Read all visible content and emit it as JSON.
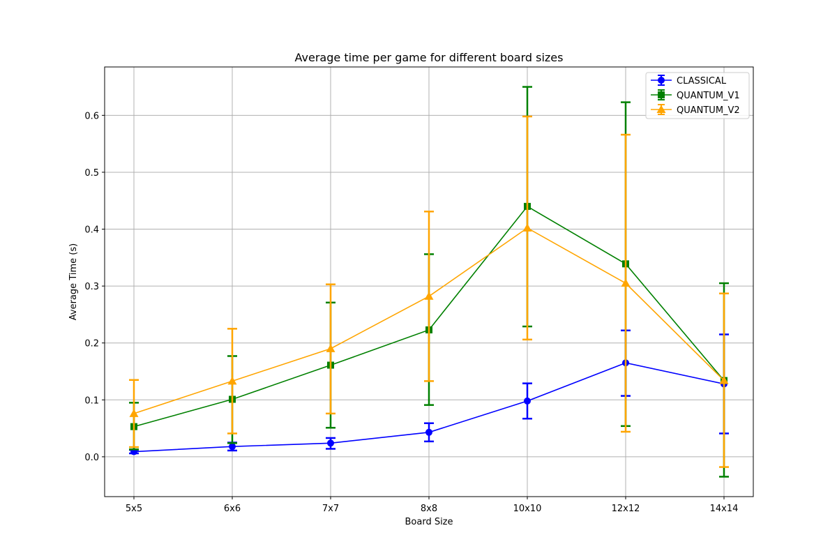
{
  "chart_data": {
    "type": "line",
    "title": "Average time per game for different board sizes",
    "xlabel": "Board Size",
    "ylabel": "Average Time (s)",
    "categories": [
      "5x5",
      "6x6",
      "7x7",
      "8x8",
      "10x10",
      "12x12",
      "14x14"
    ],
    "ylim": [
      -0.07,
      0.685
    ],
    "yticks": [
      0.0,
      0.1,
      0.2,
      0.3,
      0.4,
      0.5,
      0.6
    ],
    "ytick_labels": [
      "0.0",
      "0.1",
      "0.2",
      "0.3",
      "0.4",
      "0.5",
      "0.6"
    ],
    "grid": true,
    "legend_position": "top-right",
    "error_bars": true,
    "series": [
      {
        "name": "CLASSICAL",
        "color": "#0000ff",
        "marker": "circle",
        "values": [
          0.009,
          0.018,
          0.024,
          0.043,
          0.098,
          0.165,
          0.128
        ],
        "err_low": [
          0.006,
          0.011,
          0.014,
          0.027,
          0.067,
          0.107,
          0.041
        ],
        "err_high": [
          0.012,
          0.025,
          0.033,
          0.059,
          0.129,
          0.222,
          0.215
        ]
      },
      {
        "name": "QUANTUM_V1",
        "color": "#008000",
        "marker": "square",
        "values": [
          0.053,
          0.101,
          0.161,
          0.223,
          0.44,
          0.339,
          0.134
        ],
        "err_low": [
          0.013,
          0.024,
          0.051,
          0.091,
          0.229,
          0.054,
          -0.035
        ],
        "err_high": [
          0.095,
          0.177,
          0.271,
          0.356,
          0.65,
          0.623,
          0.305
        ]
      },
      {
        "name": "QUANTUM_V2",
        "color": "#ffa500",
        "marker": "triangle",
        "values": [
          0.076,
          0.133,
          0.19,
          0.282,
          0.402,
          0.305,
          0.134
        ],
        "err_low": [
          0.017,
          0.041,
          0.076,
          0.133,
          0.206,
          0.044,
          -0.018
        ],
        "err_high": [
          0.135,
          0.225,
          0.303,
          0.431,
          0.598,
          0.566,
          0.287
        ]
      }
    ]
  }
}
